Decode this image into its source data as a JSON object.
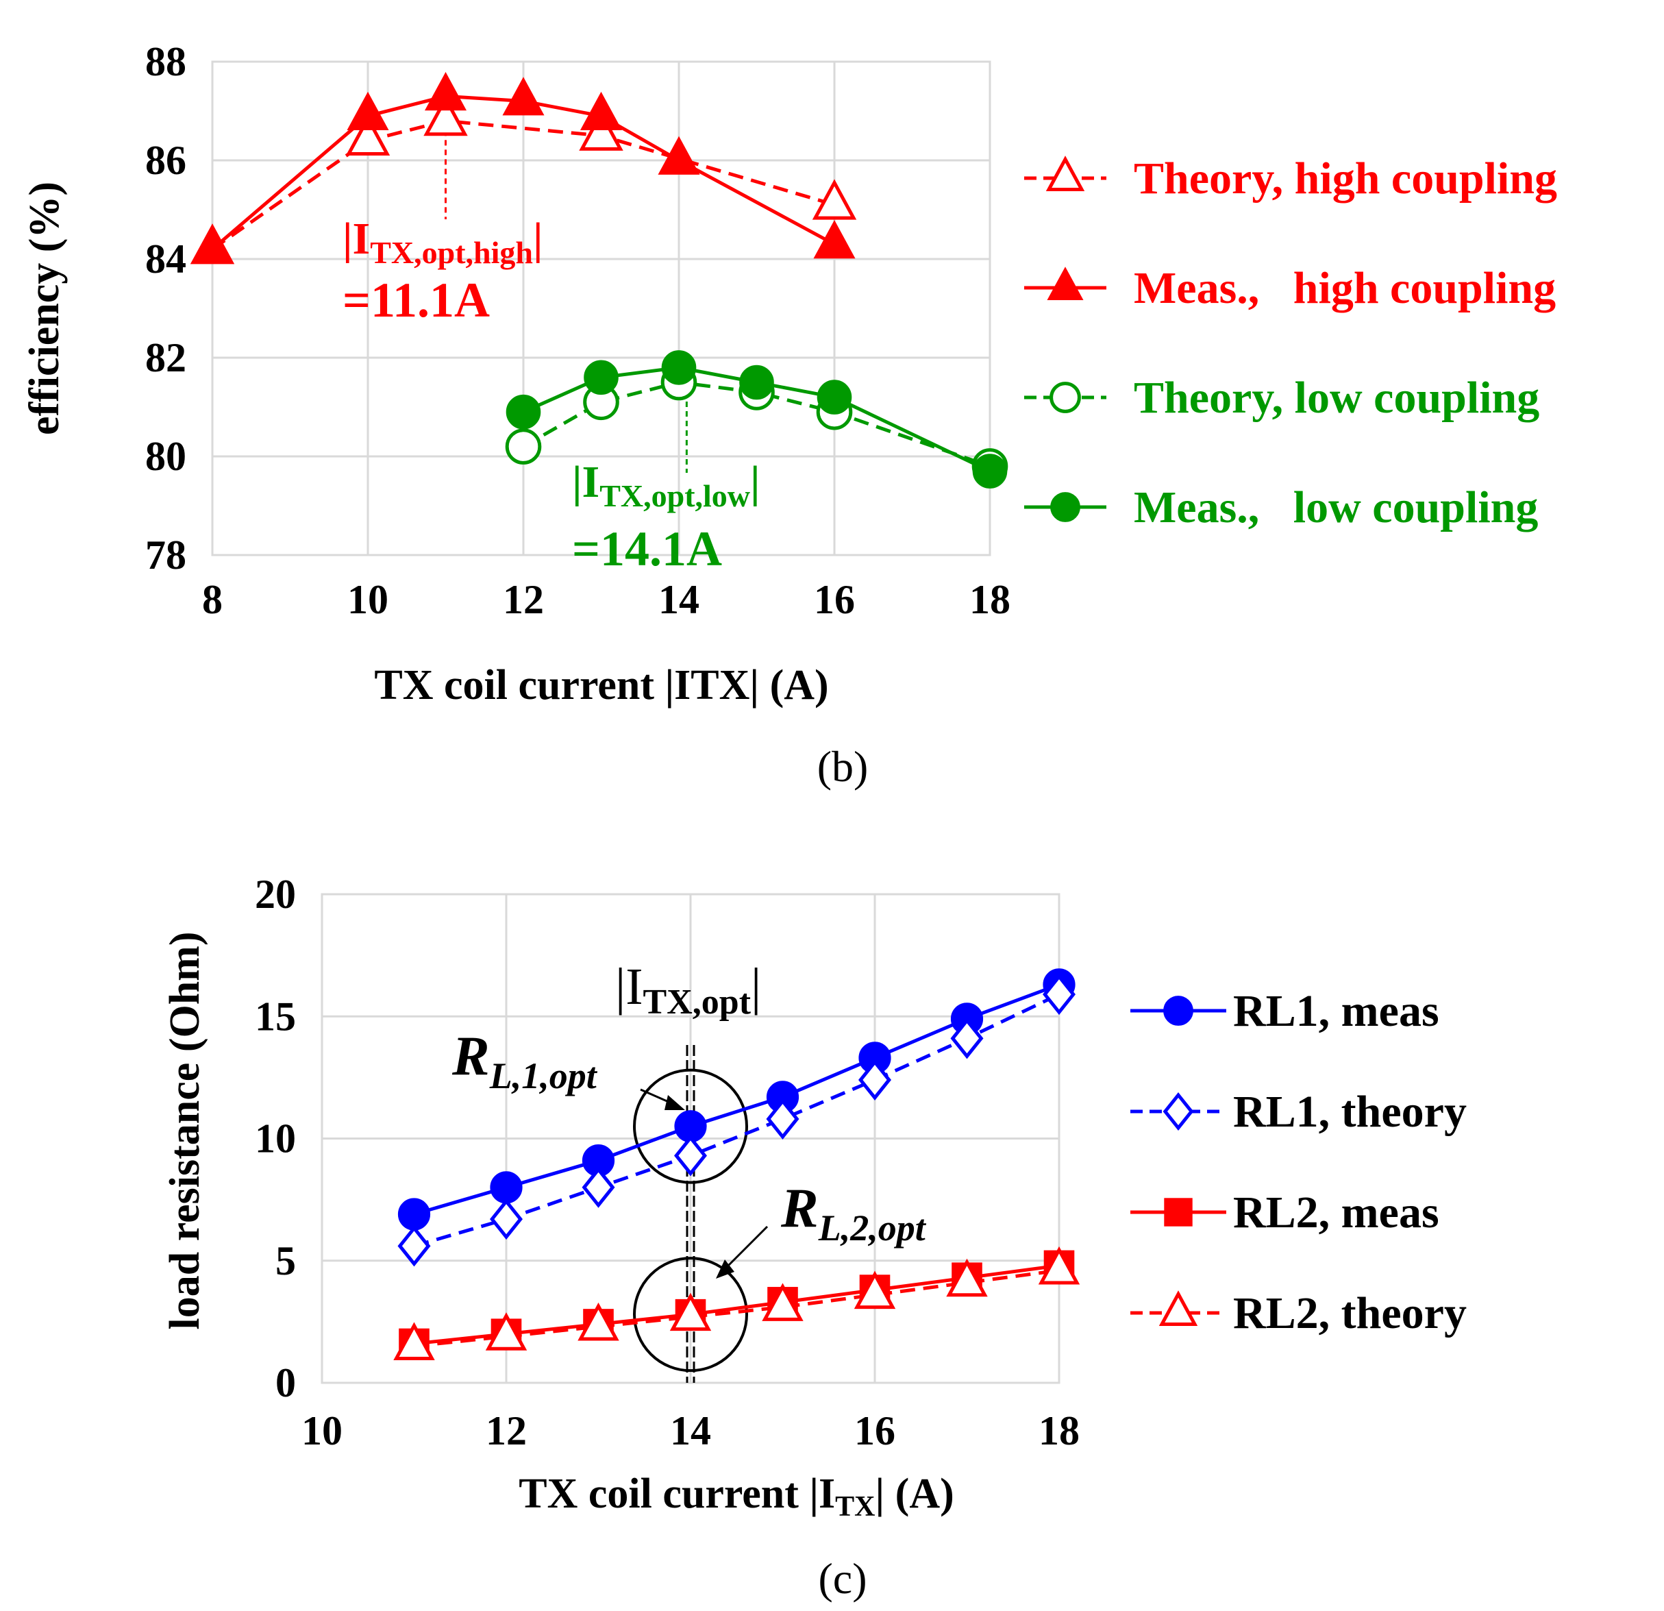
{
  "chart_data": [
    {
      "id": "b",
      "type": "line",
      "caption": "(b)",
      "xlabel": "TX coil current |ITX| (A)",
      "ylabel": "efficiency (%)",
      "xlim": [
        8,
        18
      ],
      "ylim": [
        78,
        88
      ],
      "xticks": [
        "8",
        "10",
        "12",
        "14",
        "16",
        "18"
      ],
      "yticks": [
        "78",
        "80",
        "82",
        "84",
        "86",
        "88"
      ],
      "series": [
        {
          "name": "Theory, high coupling",
          "color": "#ff0000",
          "style": "dashed",
          "marker": "triangle-open",
          "x": [
            8,
            10,
            11,
            13,
            16
          ],
          "y": [
            84.2,
            86.4,
            86.8,
            86.5,
            85.1
          ]
        },
        {
          "name": "Meas.,   high coupling",
          "color": "#ff0000",
          "style": "solid",
          "marker": "triangle-filled",
          "x": [
            8,
            10,
            11,
            12,
            13,
            14,
            16
          ],
          "y": [
            84.2,
            86.9,
            87.3,
            87.2,
            86.9,
            86.0,
            84.3
          ]
        },
        {
          "name": "Theory, low coupling",
          "color": "#009900",
          "style": "dashed",
          "marker": "circle-open",
          "x": [
            12,
            13,
            14,
            15,
            16,
            18
          ],
          "y": [
            80.2,
            81.1,
            81.5,
            81.3,
            80.9,
            79.8
          ]
        },
        {
          "name": "Meas.,   low coupling",
          "color": "#009900",
          "style": "solid",
          "marker": "circle-filled",
          "x": [
            12,
            13,
            14,
            15,
            16,
            18
          ],
          "y": [
            80.9,
            81.6,
            81.8,
            81.5,
            81.2,
            79.7
          ]
        }
      ],
      "annotations": [
        {
          "main": "|I",
          "sub": "TX,opt,high",
          "close": "|",
          "value": "=11.1A",
          "color": "#ff0000",
          "marker_x": 11
        },
        {
          "main": "|I",
          "sub": "TX,opt,low",
          "close": "|",
          "value": "=14.1A",
          "color": "#009900",
          "marker_x": 14.1
        }
      ]
    },
    {
      "id": "c",
      "type": "line",
      "caption": "(c)",
      "xlabel_main": "TX coil current |I",
      "xlabel_sub": "TX",
      "xlabel_end": "| (A)",
      "ylabel": "load resistance (Ohm)",
      "xlim": [
        10,
        18
      ],
      "ylim": [
        0,
        20
      ],
      "xticks": [
        "10",
        "12",
        "14",
        "16",
        "18"
      ],
      "yticks": [
        "0",
        "5",
        "10",
        "15",
        "20"
      ],
      "series": [
        {
          "name": "RL1, meas",
          "color": "#0000ff",
          "style": "solid",
          "marker": "circle-filled",
          "x": [
            11,
            12,
            13,
            14,
            15,
            16,
            17,
            18
          ],
          "y": [
            6.9,
            8.0,
            9.1,
            10.5,
            11.7,
            13.3,
            14.9,
            16.3
          ]
        },
        {
          "name": "RL1, theory",
          "color": "#0000ff",
          "style": "dashed",
          "marker": "diamond-open",
          "x": [
            11,
            12,
            13,
            14,
            15,
            16,
            17,
            18
          ],
          "y": [
            5.6,
            6.7,
            8.0,
            9.3,
            10.8,
            12.4,
            14.1,
            15.9
          ]
        },
        {
          "name": "RL2, meas",
          "color": "#ff0000",
          "style": "solid",
          "marker": "square-filled",
          "x": [
            11,
            12,
            13,
            14,
            15,
            16,
            17,
            18
          ],
          "y": [
            1.6,
            2.0,
            2.4,
            2.8,
            3.3,
            3.8,
            4.3,
            4.8
          ]
        },
        {
          "name": "RL2, theory",
          "color": "#ff0000",
          "style": "dashed",
          "marker": "triangle-open",
          "x": [
            11,
            12,
            13,
            14,
            15,
            16,
            17,
            18
          ],
          "y": [
            1.5,
            1.9,
            2.3,
            2.7,
            3.1,
            3.6,
            4.1,
            4.6
          ]
        }
      ],
      "annotations": {
        "opt_main": "|I",
        "opt_sub": "TX,opt",
        "opt_close": "|",
        "opt_x": 14,
        "rl1_main": "R",
        "rl1_sub": "L,1,opt",
        "rl2_main": "R",
        "rl2_sub": "L,2,opt"
      }
    }
  ]
}
